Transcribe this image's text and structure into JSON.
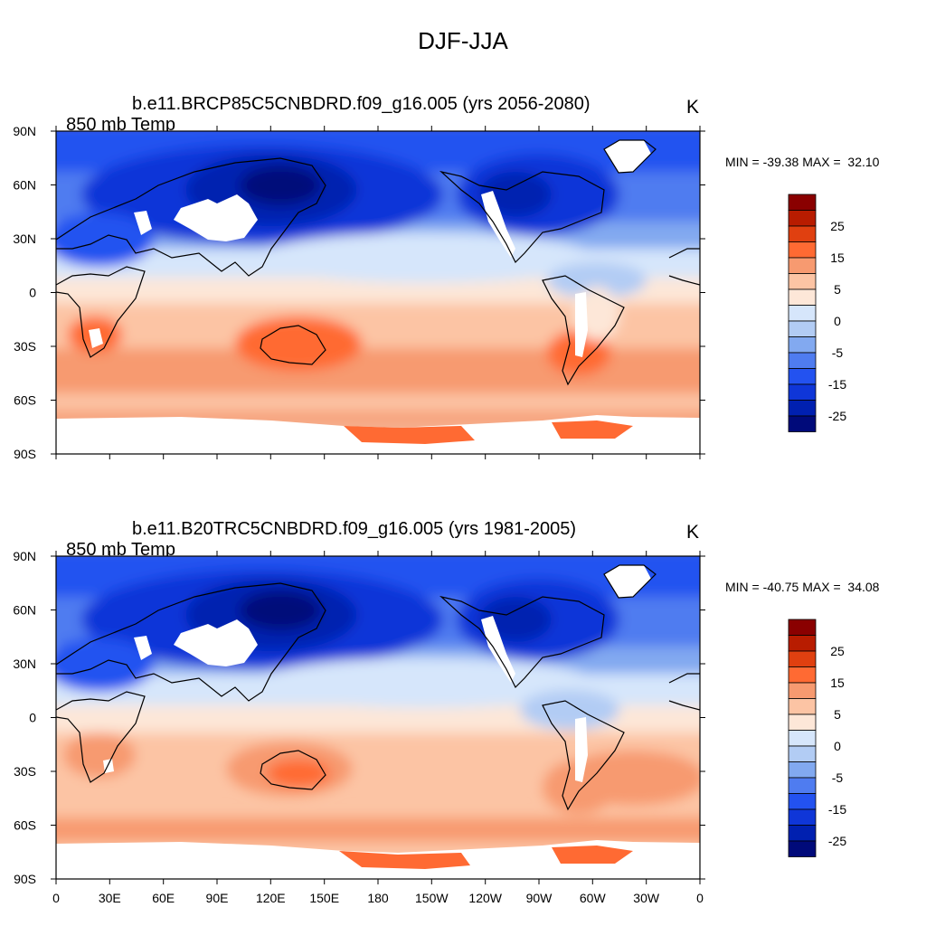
{
  "title": "DJF-JJA",
  "panels": [
    {
      "id": "future",
      "title_left": "850 mb Temp",
      "title_case": "b.e11.BRCP85C5CNBDRD.f09_g16.005 (yrs 2056-2080)",
      "units": "K",
      "min_label": "MIN = -39.38",
      "max_label": "MAX =  32.10"
    },
    {
      "id": "historical",
      "title_left": "850 mb Temp",
      "title_case": "b.e11.B20TRC5CNBDRD.f09_g16.005 (yrs 1981-2005)",
      "units": "K",
      "min_label": "MIN = -40.75",
      "max_label": "MAX =  34.08"
    }
  ],
  "axes": {
    "lat_labels": [
      "90N",
      "60N",
      "30N",
      "0",
      "30S",
      "60S",
      "90S"
    ],
    "lon_labels": [
      "0",
      "30E",
      "60E",
      "90E",
      "120E",
      "150E",
      "180",
      "150W",
      "120W",
      "90W",
      "60W",
      "30W",
      "0"
    ]
  },
  "colorbar": {
    "labels": [
      "25",
      "15",
      "5",
      "0",
      "-5",
      "-15",
      "-25"
    ],
    "colors": [
      "#8a0000",
      "#b81c00",
      "#e04010",
      "#ff6a33",
      "#f79a70",
      "#fcc4a4",
      "#fde7d8",
      "#d6e6fb",
      "#b2ccf4",
      "#82a9f0",
      "#4f7cf0",
      "#2352f0",
      "#0f36d8",
      "#0020b0",
      "#000a7a"
    ]
  }
}
